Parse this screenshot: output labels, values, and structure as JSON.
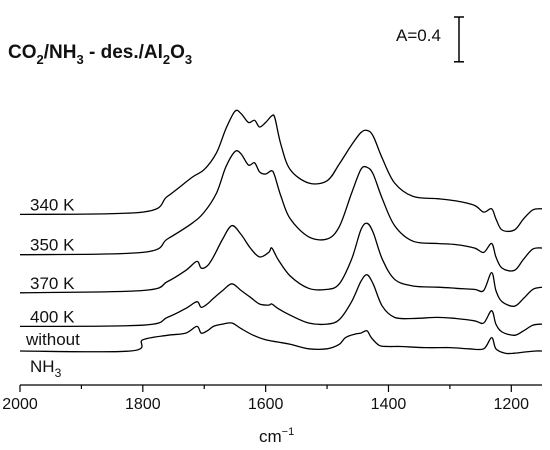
{
  "chart_data": {
    "type": "line",
    "title_parts": {
      "a": "CO",
      "a_sub": "2",
      "b": "/NH",
      "b_sub": "3",
      "c": " - des./Al",
      "c_sub": "2",
      "d": "O",
      "d_sub": "3"
    },
    "xlabel": "cm",
    "xlabel_sup": "−1",
    "xlim": [
      2000,
      1150
    ],
    "xticks": [
      2000,
      1800,
      1600,
      1400,
      1200
    ],
    "scale_bar": {
      "label": "A=0.4",
      "absorbance": 0.4
    },
    "series": [
      {
        "name": "340 K",
        "color": "#000000",
        "offset": 1.22,
        "x": [
          2000,
          1800,
          1760,
          1720,
          1700,
          1680,
          1665,
          1650,
          1640,
          1628,
          1618,
          1610,
          1600,
          1590,
          1585,
          1575,
          1560,
          1530,
          1500,
          1480,
          1460,
          1445,
          1435,
          1425,
          1410,
          1390,
          1360,
          1320,
          1290,
          1260,
          1245,
          1232,
          1225,
          1215,
          1195,
          1180,
          1165,
          1150
        ],
        "y": [
          0.0,
          0.02,
          0.16,
          0.33,
          0.4,
          0.55,
          0.76,
          0.92,
          0.9,
          0.82,
          0.84,
          0.78,
          0.82,
          0.88,
          0.86,
          0.62,
          0.4,
          0.28,
          0.3,
          0.45,
          0.62,
          0.73,
          0.75,
          0.7,
          0.5,
          0.28,
          0.16,
          0.14,
          0.12,
          0.08,
          0.02,
          0.05,
          -0.04,
          -0.14,
          -0.14,
          -0.04,
          0.04,
          0.05
        ]
      },
      {
        "name": "350 K",
        "color": "#000000",
        "offset": 0.86,
        "x": [
          2000,
          1800,
          1760,
          1720,
          1700,
          1680,
          1665,
          1650,
          1640,
          1628,
          1618,
          1610,
          1600,
          1590,
          1585,
          1575,
          1560,
          1530,
          1500,
          1480,
          1460,
          1445,
          1435,
          1425,
          1410,
          1390,
          1360,
          1320,
          1290,
          1260,
          1245,
          1232,
          1225,
          1215,
          1195,
          1180,
          1165,
          1150
        ],
        "y": [
          0.0,
          0.02,
          0.14,
          0.28,
          0.38,
          0.55,
          0.78,
          0.92,
          0.9,
          0.8,
          0.82,
          0.74,
          0.72,
          0.75,
          0.7,
          0.52,
          0.32,
          0.16,
          0.14,
          0.25,
          0.55,
          0.76,
          0.78,
          0.72,
          0.5,
          0.26,
          0.12,
          0.1,
          0.09,
          0.06,
          0.02,
          0.1,
          -0.02,
          -0.12,
          -0.14,
          -0.04,
          0.05,
          0.06
        ]
      },
      {
        "name": "370 K",
        "color": "#000000",
        "offset": 0.52,
        "x": [
          2000,
          1800,
          1760,
          1730,
          1712,
          1705,
          1695,
          1685,
          1670,
          1655,
          1640,
          1625,
          1610,
          1595,
          1590,
          1580,
          1560,
          1530,
          1500,
          1480,
          1460,
          1445,
          1435,
          1425,
          1410,
          1390,
          1360,
          1320,
          1290,
          1260,
          1245,
          1232,
          1225,
          1215,
          1195,
          1180,
          1165,
          1150
        ],
        "y": [
          0.0,
          0.02,
          0.1,
          0.2,
          0.28,
          0.22,
          0.24,
          0.32,
          0.48,
          0.6,
          0.52,
          0.4,
          0.32,
          0.36,
          0.4,
          0.3,
          0.15,
          0.04,
          0.03,
          0.08,
          0.3,
          0.56,
          0.62,
          0.54,
          0.3,
          0.12,
          0.06,
          0.05,
          0.04,
          0.03,
          0.02,
          0.18,
          0.02,
          -0.08,
          -0.12,
          -0.05,
          0.03,
          0.05
        ]
      },
      {
        "name": "400 K",
        "color": "#000000",
        "offset": 0.22,
        "x": [
          2000,
          1800,
          1760,
          1730,
          1712,
          1705,
          1695,
          1685,
          1670,
          1655,
          1640,
          1625,
          1610,
          1595,
          1590,
          1580,
          1560,
          1530,
          1500,
          1480,
          1460,
          1445,
          1435,
          1425,
          1410,
          1390,
          1360,
          1320,
          1290,
          1260,
          1245,
          1232,
          1225,
          1215,
          1195,
          1180,
          1165,
          1150
        ],
        "y": [
          0.0,
          0.01,
          0.08,
          0.16,
          0.22,
          0.17,
          0.2,
          0.25,
          0.32,
          0.38,
          0.32,
          0.26,
          0.2,
          0.19,
          0.2,
          0.16,
          0.1,
          0.03,
          0.02,
          0.06,
          0.22,
          0.4,
          0.46,
          0.38,
          0.18,
          0.08,
          0.07,
          0.08,
          0.07,
          0.05,
          0.03,
          0.14,
          0.02,
          -0.05,
          -0.08,
          -0.04,
          0.01,
          0.02
        ]
      },
      {
        "name": "without NH3",
        "color": "#000000",
        "offset": 0.0,
        "x": [
          2000,
          1820,
          1800,
          1760,
          1730,
          1712,
          1705,
          1695,
          1685,
          1670,
          1655,
          1640,
          1620,
          1600,
          1580,
          1560,
          1530,
          1500,
          1480,
          1470,
          1455,
          1445,
          1435,
          1428,
          1415,
          1400,
          1380,
          1340,
          1300,
          1270,
          1245,
          1232,
          1225,
          1210,
          1195,
          1180,
          1160,
          1150
        ],
        "y": [
          0.0,
          0.0,
          0.1,
          0.14,
          0.16,
          0.22,
          0.16,
          0.18,
          0.22,
          0.24,
          0.25,
          0.2,
          0.14,
          0.1,
          0.08,
          0.06,
          0.02,
          0.02,
          0.06,
          0.12,
          0.15,
          0.16,
          0.18,
          0.12,
          0.05,
          0.04,
          0.04,
          0.03,
          0.03,
          0.02,
          0.02,
          0.12,
          0.02,
          -0.02,
          -0.02,
          -0.01,
          0.0,
          0.0
        ]
      }
    ],
    "series_labels": [
      "340 K",
      "350 K",
      "370 K",
      "400 K"
    ],
    "last_label_line1": "without",
    "last_label_line2_a": "NH",
    "last_label_line2_sub": "3"
  }
}
